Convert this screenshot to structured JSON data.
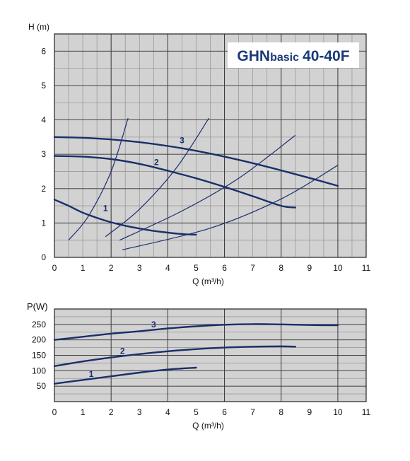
{
  "colors": {
    "plot_background": "#d2d2d2",
    "grid_major": "#3a3a3a",
    "grid_minor": "#9a9a9a",
    "curve": "#1a2f6b",
    "title": "#1b3a78"
  },
  "chart_data": [
    {
      "type": "line",
      "title": "GHNbasic 40-40F",
      "title_parts": {
        "main": "GHN",
        "small": "basic",
        "model": "40-40F"
      },
      "ylabel": "H (m)",
      "xlabel": "Q (m³/h)",
      "xlim": [
        0,
        11
      ],
      "ylim": [
        0,
        6.5
      ],
      "x_ticks": [
        "0",
        "1",
        "2",
        "3",
        "4",
        "5",
        "6",
        "7",
        "8",
        "9",
        "10",
        "11"
      ],
      "y_ticks": [
        "0",
        "1",
        "2",
        "3",
        "4",
        "5",
        "6"
      ],
      "grid": true,
      "series": [
        {
          "name": "1",
          "x": [
            0,
            0.5,
            1,
            1.5,
            2,
            2.5,
            3,
            3.5,
            4,
            4.5,
            5
          ],
          "y": [
            1.68,
            1.5,
            1.3,
            1.15,
            1.02,
            0.92,
            0.84,
            0.77,
            0.72,
            0.68,
            0.66
          ],
          "label_at": [
            1.8,
            1.35
          ]
        },
        {
          "name": "2",
          "x": [
            0,
            1,
            2,
            3,
            4,
            5,
            6,
            7,
            8,
            8.5
          ],
          "y": [
            2.95,
            2.93,
            2.86,
            2.72,
            2.52,
            2.3,
            2.05,
            1.78,
            1.5,
            1.45
          ],
          "label_at": [
            3.6,
            2.68
          ]
        },
        {
          "name": "3",
          "x": [
            0,
            1,
            2,
            3,
            4,
            5,
            6,
            7,
            8,
            9,
            10
          ],
          "y": [
            3.5,
            3.48,
            3.43,
            3.35,
            3.24,
            3.1,
            2.93,
            2.74,
            2.53,
            2.31,
            2.08
          ],
          "label_at": [
            4.5,
            3.32
          ]
        }
      ],
      "system_curves": [
        {
          "x": [
            0.5,
            1.2,
            2.0,
            2.6
          ],
          "y": [
            0.5,
            1.2,
            2.5,
            4.05
          ]
        },
        {
          "x": [
            1.8,
            3.0,
            4.3,
            5.45
          ],
          "y": [
            0.6,
            1.4,
            2.6,
            4.05
          ]
        },
        {
          "x": [
            2.3,
            4.5,
            6.5,
            8.5
          ],
          "y": [
            0.5,
            1.35,
            2.3,
            3.55
          ]
        },
        {
          "x": [
            2.4,
            5.5,
            8.0,
            10.0
          ],
          "y": [
            0.22,
            0.85,
            1.7,
            2.68
          ]
        }
      ]
    },
    {
      "type": "line",
      "title": "",
      "ylabel": "P(W)",
      "xlabel": "Q (m³/h)",
      "xlim": [
        0,
        11
      ],
      "ylim": [
        0,
        300
      ],
      "x_ticks": [
        "0",
        "1",
        "2",
        "3",
        "4",
        "5",
        "6",
        "7",
        "8",
        "9",
        "10",
        "11"
      ],
      "y_ticks": [
        "50",
        "100",
        "150",
        "200",
        "250"
      ],
      "grid": true,
      "series": [
        {
          "name": "1",
          "x": [
            0,
            1,
            2,
            3,
            4,
            5
          ],
          "y": [
            58,
            70,
            82,
            94,
            104,
            110
          ],
          "label_at": [
            1.3,
            80
          ]
        },
        {
          "name": "2",
          "x": [
            0,
            1,
            2,
            3,
            4,
            5,
            6,
            7,
            8,
            8.5
          ],
          "y": [
            115,
            130,
            143,
            154,
            163,
            170,
            175,
            178,
            179,
            178
          ],
          "label_at": [
            2.4,
            155
          ]
        },
        {
          "name": "3",
          "x": [
            0,
            1,
            2,
            3,
            4,
            5,
            6,
            7,
            8,
            9,
            10
          ],
          "y": [
            200,
            210,
            220,
            228,
            237,
            244,
            249,
            251,
            250,
            248,
            247
          ],
          "label_at": [
            3.5,
            240
          ]
        }
      ]
    }
  ]
}
